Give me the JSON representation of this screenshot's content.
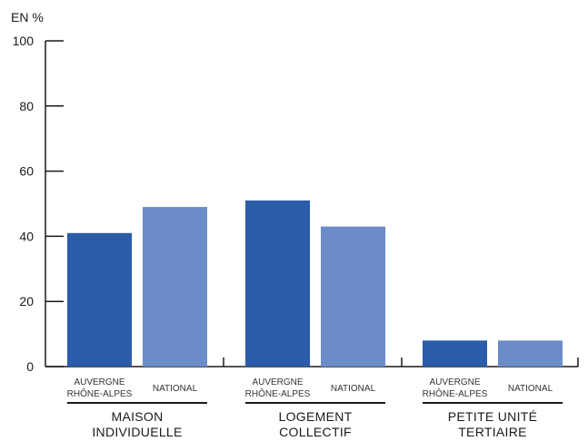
{
  "chart_data": {
    "type": "bar",
    "unit_label": "EN %",
    "ylim": [
      0,
      100
    ],
    "yticks": [
      "0",
      "20",
      "40",
      "60",
      "80",
      "100"
    ],
    "groups": [
      {
        "name_lines": [
          "MAISON",
          "INDIVIDUELLE"
        ],
        "bars": [
          {
            "label_lines": [
              "AUVERGNE",
              "RHÔNE-ALPES"
            ],
            "value": 41,
            "color": "#2a5caa"
          },
          {
            "label_lines": [
              "NATIONAL"
            ],
            "value": 49,
            "color": "#6b8cc7"
          }
        ]
      },
      {
        "name_lines": [
          "LOGEMENT",
          "COLLECTIF"
        ],
        "bars": [
          {
            "label_lines": [
              "AUVERGNE",
              "RHÔNE-ALPES"
            ],
            "value": 51,
            "color": "#2a5caa"
          },
          {
            "label_lines": [
              "NATIONAL"
            ],
            "value": 43,
            "color": "#6b8cc7"
          }
        ]
      },
      {
        "name_lines": [
          "PETITE UNITÉ",
          "TERTIAIRE"
        ],
        "bars": [
          {
            "label_lines": [
              "AUVERGNE",
              "RHÔNE-ALPES"
            ],
            "value": 8,
            "color": "#2a5caa"
          },
          {
            "label_lines": [
              "NATIONAL"
            ],
            "value": 8,
            "color": "#6b8cc7"
          }
        ]
      }
    ],
    "grid": false,
    "legend": "none"
  }
}
